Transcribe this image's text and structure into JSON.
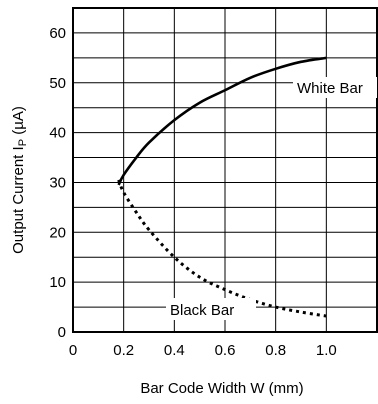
{
  "chart_data": {
    "type": "line",
    "xlabel": "Bar Code Width  W (mm)",
    "ylabel_main": "Output Current  I",
    "ylabel_sub": "P",
    "ylabel_unit": " (µA)",
    "xlim": [
      0,
      1.2
    ],
    "ylim": [
      0,
      65
    ],
    "x_ticks": [
      0,
      0.2,
      0.4,
      0.6,
      0.8,
      1.0
    ],
    "x_tick_labels": [
      "0",
      "0.2",
      "0.4",
      "0.6",
      "0.8",
      "1.0"
    ],
    "y_ticks": [
      0,
      10,
      20,
      30,
      40,
      50,
      60
    ],
    "y_tick_labels": [
      "0",
      "10",
      "20",
      "30",
      "40",
      "50",
      "60"
    ],
    "grid_x": [
      0.2,
      0.4,
      0.6,
      0.8,
      1.0
    ],
    "grid_y": [
      5,
      10,
      15,
      20,
      25,
      30,
      35,
      40,
      45,
      50,
      55,
      60
    ],
    "grid": true,
    "series": [
      {
        "name": "White Bar",
        "style": "solid",
        "color": "#000000",
        "x": [
          0.18,
          0.2,
          0.25,
          0.3,
          0.4,
          0.5,
          0.6,
          0.7,
          0.8,
          0.9,
          1.0
        ],
        "y": [
          29.5,
          31.5,
          35.0,
          38.0,
          42.5,
          46.0,
          48.5,
          51.0,
          52.8,
          54.2,
          55.0
        ]
      },
      {
        "name": "Black Bar",
        "style": "dotted",
        "color": "#000000",
        "x": [
          0.18,
          0.2,
          0.25,
          0.3,
          0.4,
          0.5,
          0.6,
          0.7,
          0.8,
          0.9,
          1.0
        ],
        "y": [
          30.5,
          28.0,
          24.0,
          20.5,
          15.0,
          11.0,
          8.5,
          6.5,
          5.0,
          4.0,
          3.2
        ]
      }
    ]
  }
}
